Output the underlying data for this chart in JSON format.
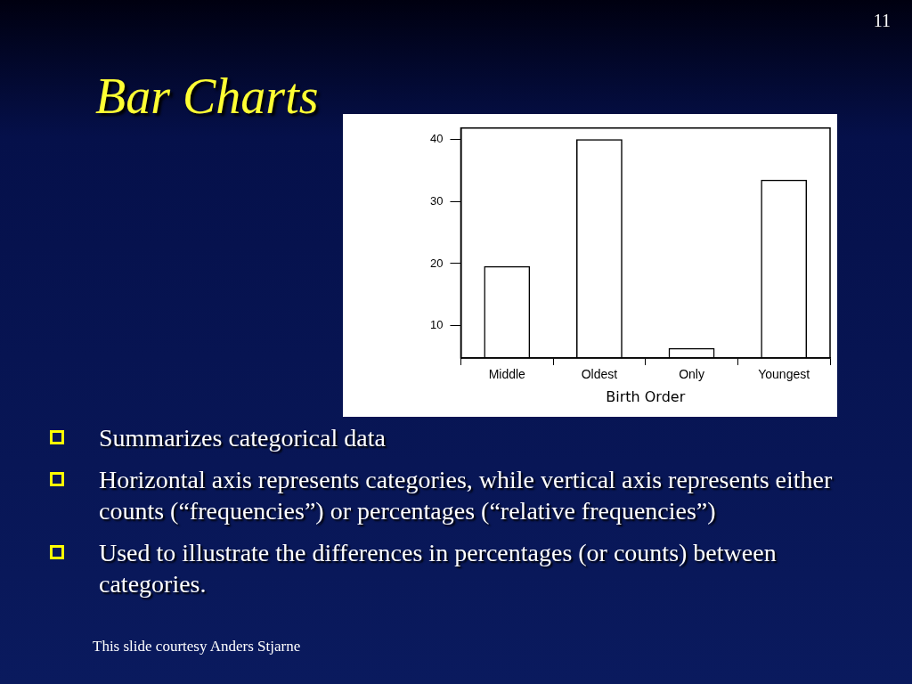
{
  "chart_data": {
    "type": "bar",
    "title": "Bar Charts",
    "xlabel": "Birth Order",
    "categories": [
      "Middle",
      "Oldest",
      "Only",
      "Youngest"
    ],
    "values": [
      19.6,
      40,
      6.4,
      33.5
    ],
    "color": "#000000",
    "ylim": [
      4.8,
      41.8
    ],
    "yticks": [
      10,
      20,
      30,
      40
    ],
    "grid": false,
    "legend": false,
    "annotations": [
      "Summarizes categorical data",
      "Horizontal axis represents categories, while vertical axis represents either counts (“frequencies”) or percentages (“relative frequencies”)",
      "Used to illustrate the differences in percentages (or counts) between categories.",
      "This slide courtesy Anders Stjarne",
      "11"
    ]
  }
}
